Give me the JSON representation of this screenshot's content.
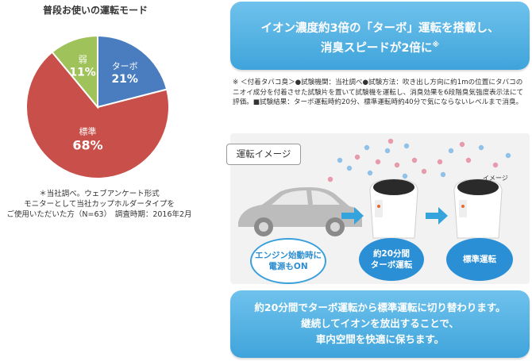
{
  "chart_data": {
    "type": "pie",
    "title": "普段お使いの運転モード",
    "slices": [
      {
        "label": "ターボ",
        "value": 21,
        "display": "21%",
        "color": "#4a7dbf"
      },
      {
        "label": "標準",
        "value": 68,
        "display": "68%",
        "color": "#c9504a"
      },
      {
        "label": "弱",
        "value": 11,
        "display": "11%",
        "color": "#9fc25a"
      }
    ],
    "note": [
      "＊当社調べ。ウェブアンケート形式",
      "モニターとして当社カップホルダータイプを",
      "ご使用いただいた方（N=63）　調査時期：2016年2月"
    ]
  },
  "headline": {
    "line1": "イオン濃度約3倍の「ターボ」運転を搭載し、",
    "line2": "消臭スピードが2倍に",
    "mark": "※"
  },
  "footnote": "※ ＜付着タバコ臭＞●試験機関：当社調べ●試験方法：吹き出し方向に約1mの位置にタバコのニオイ成分を付着させた試験片を置いて試験機を運転し、消臭効果を6段階臭気強度表示法にて評価。■試験結果：ターボ運転時約20分、標準運転時約40分で気にならないレベルまで消臭。",
  "operation": {
    "tag": "運転イメージ",
    "image_label": "イメージ",
    "steps": [
      {
        "line1": "エンジン始動時に",
        "line2": "電源もON"
      },
      {
        "line1": "約20分間",
        "line2": "ターボ運転"
      },
      {
        "line1": "標準運転",
        "line2": ""
      }
    ]
  },
  "summary": {
    "line1": "約20分間でターボ運転から標準運転に切り替わります。",
    "line2": "継続してイオンを放出することで、",
    "line3": "車内空間を快適に保ちます。"
  }
}
